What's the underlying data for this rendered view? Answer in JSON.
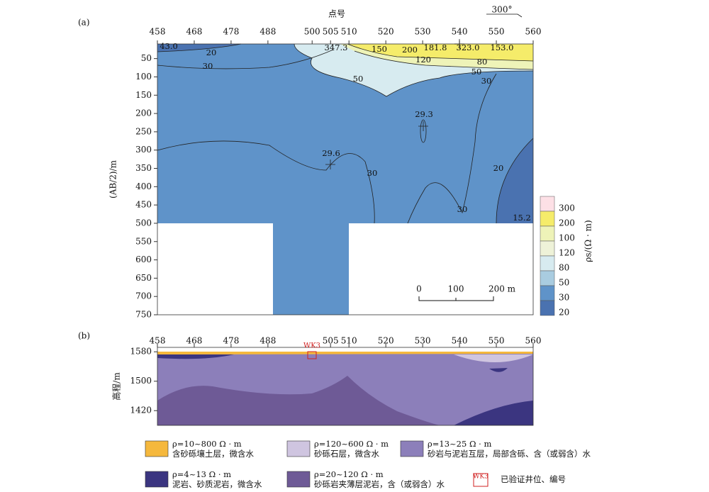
{
  "panel_a": {
    "label": "(a)",
    "x_title": "点号",
    "direction": "300°",
    "y_title": "(AB/2)/m",
    "xlim": [
      458,
      560
    ],
    "xticks": [
      458,
      468,
      478,
      488,
      500,
      505,
      510,
      520,
      530,
      540,
      550,
      560
    ],
    "ylim": [
      10,
      750
    ],
    "yticks": [
      50,
      100,
      150,
      200,
      250,
      300,
      350,
      400,
      450,
      500,
      550,
      600,
      650,
      700,
      750
    ],
    "colorbar_title": "ρs/(Ω · m)",
    "colorbar": [
      "300",
      "200",
      "100",
      "120",
      "80",
      "50",
      "30",
      "20"
    ],
    "contour_labels": [
      "43.0",
      "20",
      "30",
      "347.3",
      "150",
      "200",
      "181.8",
      "323.0",
      "153.0",
      "120",
      "80",
      "50",
      "50",
      "30",
      "29.3",
      "29.6",
      "30",
      "20",
      "30",
      "15.2"
    ],
    "scale_bar": [
      "0",
      "100",
      "200 m"
    ]
  },
  "panel_b": {
    "label": "(b)",
    "y_title": "高程/m",
    "xlim": [
      458,
      560
    ],
    "xticks": [
      458,
      468,
      478,
      488,
      505,
      510,
      520,
      530,
      540,
      550,
      560
    ],
    "ylim": [
      1380,
      1592
    ],
    "yticks": [
      1580,
      1500,
      1420
    ],
    "well": "WK3"
  },
  "legend": [
    {
      "formula": "ρ=10~800 Ω · m",
      "text": "含砂砾壤土层，微含水"
    },
    {
      "formula": "ρ=120~600 Ω · m",
      "text": "砂砾石层，微含水"
    },
    {
      "formula": "ρ=13~25 Ω · m",
      "text": "砂岩与泥岩互层，局部含砾、含（或弱含）水"
    },
    {
      "formula": "ρ=4~13 Ω · m",
      "text": "泥岩、砂质泥岩，微含水"
    },
    {
      "formula": "ρ=20~120 Ω · m",
      "text": "砂砾岩夹薄层泥岩，含（或弱含）水"
    },
    {
      "well": "WK3",
      "text": "已验证井位、编号"
    }
  ]
}
